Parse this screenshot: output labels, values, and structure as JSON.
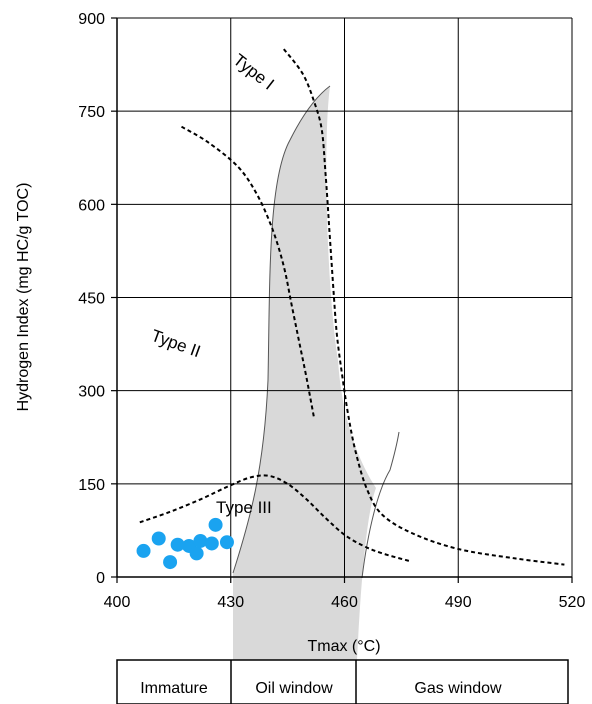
{
  "chart_data": {
    "type": "scatter",
    "xlabel": "Tmax (°C)",
    "ylabel": "Hydrogen Index (mg HC/g TOC)",
    "xlim": [
      400,
      520
    ],
    "ylim": [
      0,
      900
    ],
    "x_ticks": [
      "400",
      "430",
      "460",
      "490",
      "520"
    ],
    "y_ticks": [
      "0",
      "150",
      "300",
      "450",
      "600",
      "750",
      "900"
    ],
    "grid": true,
    "series": [
      {
        "values": [
          {
            "x": 407,
            "y": 42
          },
          {
            "x": 411,
            "y": 62
          },
          {
            "x": 414,
            "y": 24
          },
          {
            "x": 416,
            "y": 52
          },
          {
            "x": 419,
            "y": 50
          },
          {
            "x": 421,
            "y": 38
          },
          {
            "x": 422,
            "y": 58
          },
          {
            "x": 425,
            "y": 54
          },
          {
            "x": 426,
            "y": 84
          },
          {
            "x": 429,
            "y": 56
          }
        ],
        "color": "#1aa3f0"
      }
    ],
    "curves": [
      {
        "label": "Type I",
        "points": [
          [
            444,
            850
          ],
          [
            449,
            810
          ],
          [
            452,
            765
          ],
          [
            454,
            720
          ],
          [
            455,
            650
          ],
          [
            456,
            560
          ],
          [
            457,
            470
          ],
          [
            458,
            390
          ],
          [
            459.5,
            320
          ],
          [
            461,
            260
          ],
          [
            463,
            200
          ],
          [
            466,
            140
          ],
          [
            470,
            100
          ],
          [
            478,
            70
          ],
          [
            490,
            45
          ],
          [
            505,
            30
          ],
          [
            518,
            20
          ]
        ]
      },
      {
        "label": "Type II",
        "points": [
          [
            417,
            725
          ],
          [
            424,
            700
          ],
          [
            432,
            660
          ],
          [
            437,
            615
          ],
          [
            441,
            560
          ],
          [
            444,
            500
          ],
          [
            446,
            440
          ],
          [
            448,
            380
          ],
          [
            450,
            320
          ],
          [
            452,
            255
          ]
        ]
      },
      {
        "label": "Type III",
        "points": [
          [
            406,
            88
          ],
          [
            414,
            105
          ],
          [
            422,
            125
          ],
          [
            429,
            145
          ],
          [
            435,
            160
          ],
          [
            440,
            163
          ],
          [
            445,
            150
          ],
          [
            450,
            125
          ],
          [
            455,
            95
          ],
          [
            460,
            68
          ],
          [
            465,
            50
          ],
          [
            470,
            38
          ],
          [
            477,
            26
          ]
        ]
      }
    ],
    "zones": [
      "Immature",
      "Oil window",
      "Gas window"
    ],
    "colors": {
      "points": "#1aa3f0",
      "shaded": "#d9d9d9",
      "curves": "#000000",
      "boundary": "#555555"
    }
  }
}
